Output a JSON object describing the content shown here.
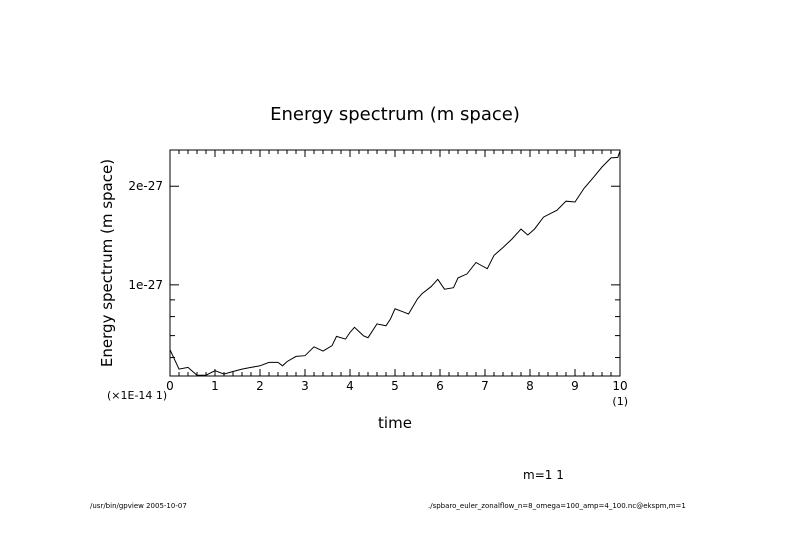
{
  "chart_data": {
    "type": "line",
    "title": "Energy spectrum (m space)",
    "xlabel": "time",
    "ylabel": "Energy spectrum (m space)",
    "x_units": "(1)",
    "y_units": "(×1E-14 1)",
    "xlim": [
      0,
      10
    ],
    "ylim": [
      5.27e-28,
      2.58e-27
    ],
    "yscale": "log",
    "grid": false,
    "xticks": [
      0,
      1,
      2,
      3,
      4,
      5,
      6,
      7,
      8,
      9,
      10
    ],
    "xtick_labels": [
      "0",
      "1",
      "2",
      "3",
      "4",
      "5",
      "6",
      "7",
      "8",
      "9",
      "10"
    ],
    "yticks": [
      1e-27,
      2e-27
    ],
    "ytick_labels": [
      "1e-27",
      "2e-27"
    ],
    "legend": "m=1 1",
    "series": [
      {
        "name": "m=1 1",
        "x": [
          0,
          0.2,
          0.4,
          0.6,
          0.8,
          1.0,
          1.2,
          1.4,
          1.6,
          1.8,
          2.0,
          2.2,
          2.4,
          2.5,
          2.6,
          2.8,
          3.0,
          3.2,
          3.4,
          3.6,
          3.7,
          3.9,
          4.0,
          4.1,
          4.3,
          4.4,
          4.6,
          4.8,
          4.9,
          5.0,
          5.2,
          5.3,
          5.5,
          5.6,
          5.8,
          5.95,
          6.1,
          6.3,
          6.4,
          6.6,
          6.8,
          6.9,
          7.05,
          7.2,
          7.4,
          7.6,
          7.8,
          7.95,
          8.1,
          8.3,
          8.6,
          8.8,
          9.0,
          9.2,
          9.4,
          9.6,
          9.8,
          9.95,
          10
        ],
        "y": [
          6.34e-28,
          5.53e-28,
          5.6e-28,
          5.3e-28,
          5.3e-28,
          5.47e-28,
          5.34e-28,
          5.44e-28,
          5.53e-28,
          5.6e-28,
          5.66e-28,
          5.8e-28,
          5.8e-28,
          5.66e-28,
          5.83e-28,
          6.05e-28,
          6.08e-28,
          6.47e-28,
          6.28e-28,
          6.52e-28,
          6.96e-28,
          6.83e-28,
          7.16e-28,
          7.42e-28,
          6.99e-28,
          6.9e-28,
          7.6e-28,
          7.5e-28,
          7.87e-28,
          8.45e-28,
          8.25e-28,
          8.15e-28,
          9.06e-28,
          9.4e-28,
          9.87e-28,
          1.04e-27,
          9.7e-28,
          9.8e-28,
          1.05e-27,
          1.08e-27,
          1.17e-27,
          1.15e-27,
          1.12e-27,
          1.23e-27,
          1.3e-27,
          1.38e-27,
          1.48e-27,
          1.42e-27,
          1.48e-27,
          1.61e-27,
          1.69e-27,
          1.8e-27,
          1.79e-27,
          1.97e-27,
          2.12e-27,
          2.29e-27,
          2.44e-27,
          2.45e-27,
          2.56e-27
        ]
      }
    ]
  },
  "footer": {
    "left": "/usr/bin/gpview  2005-10-07",
    "right": "./spbaro_euler_zonalflow_n=8_omega=100_amp=4_100.nc@ekspm,m=1"
  }
}
